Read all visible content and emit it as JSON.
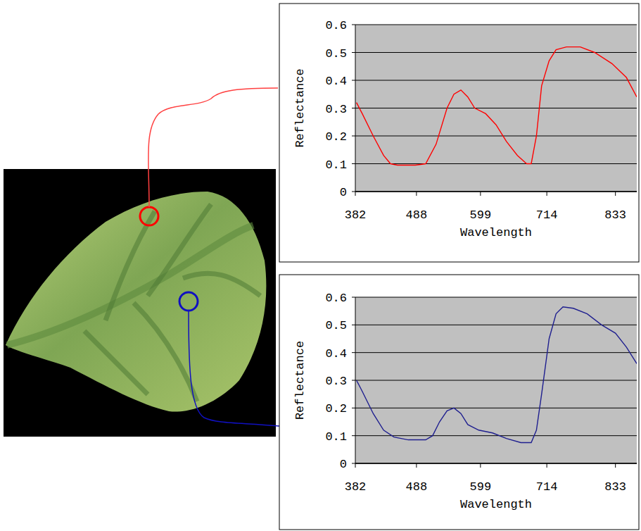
{
  "chart_data": [
    {
      "type": "line",
      "x_label": "Wavelength",
      "y_label": "Reflectance",
      "color": "#ff0000",
      "grid": true,
      "xlim": [
        382,
        870
      ],
      "xticks": [
        382,
        488,
        599,
        714,
        833
      ],
      "ylim": [
        0,
        0.6
      ],
      "yticks": [
        0,
        0.1,
        0.2,
        0.3,
        0.4,
        0.5,
        0.6
      ],
      "x": [
        384,
        394,
        413,
        431,
        443,
        455,
        486,
        504,
        522,
        541,
        553,
        565,
        577,
        589,
        608,
        626,
        644,
        663,
        679,
        687,
        696,
        705,
        718,
        730,
        748,
        772,
        797,
        827,
        852,
        870
      ],
      "values": [
        0.32,
        0.28,
        0.2,
        0.13,
        0.1,
        0.095,
        0.095,
        0.1,
        0.17,
        0.3,
        0.35,
        0.365,
        0.34,
        0.3,
        0.28,
        0.24,
        0.18,
        0.13,
        0.1,
        0.1,
        0.2,
        0.38,
        0.47,
        0.51,
        0.52,
        0.52,
        0.5,
        0.46,
        0.41,
        0.34
      ]
    },
    {
      "type": "line",
      "x_label": "Wavelength",
      "y_label": "Reflectance",
      "color": "#1f1f8f",
      "grid": true,
      "xlim": [
        382,
        870
      ],
      "xticks": [
        382,
        488,
        599,
        714,
        833
      ],
      "ylim": [
        0,
        0.6
      ],
      "yticks": [
        0,
        0.1,
        0.2,
        0.3,
        0.4,
        0.5,
        0.6
      ],
      "x": [
        384,
        394,
        413,
        431,
        449,
        474,
        504,
        516,
        528,
        541,
        553,
        565,
        577,
        596,
        620,
        644,
        669,
        687,
        696,
        705,
        718,
        730,
        742,
        760,
        784,
        809,
        833,
        852,
        870
      ],
      "values": [
        0.3,
        0.26,
        0.18,
        0.12,
        0.095,
        0.085,
        0.085,
        0.1,
        0.15,
        0.19,
        0.2,
        0.18,
        0.14,
        0.12,
        0.11,
        0.09,
        0.075,
        0.075,
        0.12,
        0.25,
        0.45,
        0.54,
        0.565,
        0.56,
        0.54,
        0.5,
        0.47,
        0.42,
        0.36
      ]
    }
  ]
}
